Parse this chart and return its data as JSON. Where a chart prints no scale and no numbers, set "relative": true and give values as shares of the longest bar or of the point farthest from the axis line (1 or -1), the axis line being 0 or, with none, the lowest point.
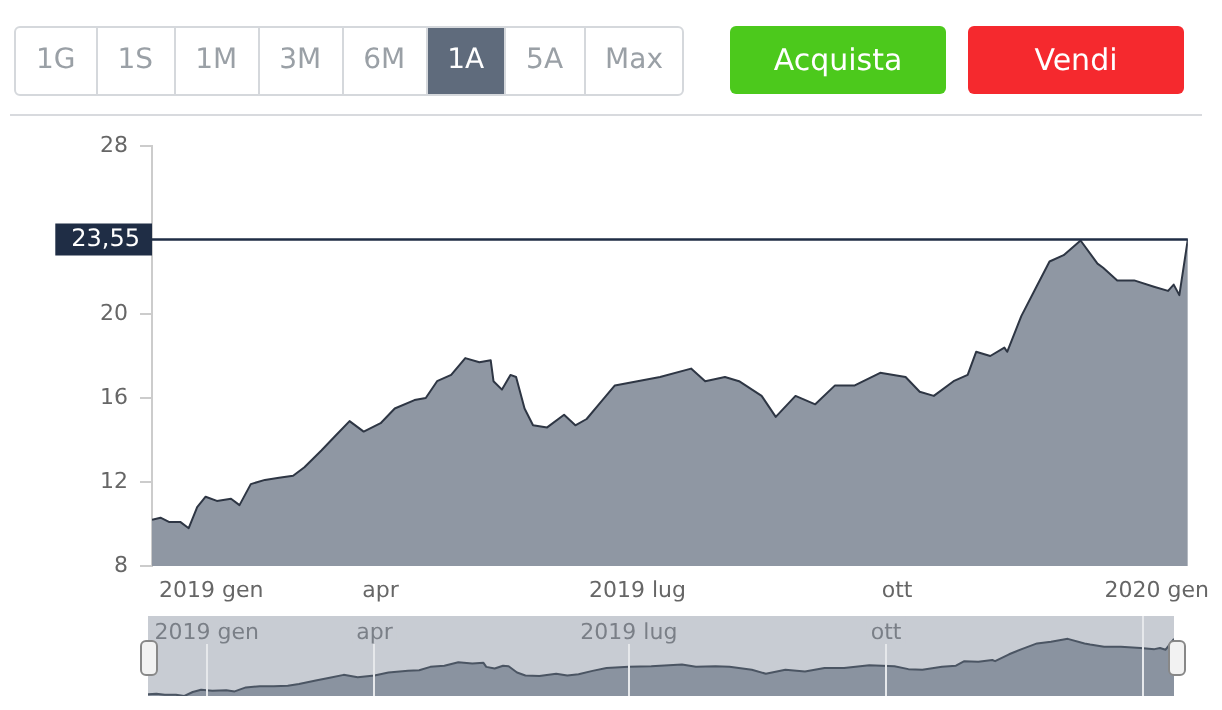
{
  "chart_data": [
    {
      "type": "area",
      "color": "#8f97a3",
      "x": [
        "2019-01-10",
        "2019-01-13",
        "2019-01-16",
        "2019-01-20",
        "2019-01-23",
        "2019-01-26",
        "2019-01-29",
        "2019-02-02",
        "2019-02-07",
        "2019-02-10",
        "2019-02-14",
        "2019-02-19",
        "2019-02-24",
        "2019-03-01",
        "2019-03-05",
        "2019-03-11",
        "2019-03-16",
        "2019-03-21",
        "2019-03-26",
        "2019-04-01",
        "2019-04-06",
        "2019-04-13",
        "2019-04-17",
        "2019-04-21",
        "2019-04-26",
        "2019-05-01",
        "2019-05-06",
        "2019-05-10",
        "2019-05-11",
        "2019-05-14",
        "2019-05-17",
        "2019-05-19",
        "2019-05-22",
        "2019-05-25",
        "2019-05-30",
        "2019-06-05",
        "2019-06-09",
        "2019-06-13",
        "2019-06-18",
        "2019-06-23",
        "2019-07-01",
        "2019-07-09",
        "2019-07-20",
        "2019-07-25",
        "2019-08-01",
        "2019-08-06",
        "2019-08-14",
        "2019-08-19",
        "2019-08-26",
        "2019-09-02",
        "2019-09-09",
        "2019-09-16",
        "2019-09-25",
        "2019-10-04",
        "2019-10-09",
        "2019-10-14",
        "2019-10-21",
        "2019-10-26",
        "2019-10-29",
        "2019-11-03",
        "2019-11-08",
        "2019-11-09",
        "2019-11-14",
        "2019-11-19",
        "2019-11-24",
        "2019-11-29",
        "2019-12-05",
        "2019-12-11",
        "2019-12-13",
        "2019-12-18",
        "2019-12-24",
        "2019-12-31",
        "2020-01-05",
        "2020-01-07",
        "2020-01-09",
        "2020-01-12"
      ],
      "values": [
        10.2,
        10.3,
        10.1,
        10.1,
        9.8,
        10.8,
        11.3,
        11.1,
        11.2,
        10.9,
        11.9,
        12.1,
        12.2,
        12.3,
        12.7,
        13.5,
        14.2,
        14.9,
        14.4,
        14.8,
        15.5,
        15.9,
        16.0,
        16.8,
        17.1,
        17.9,
        17.7,
        17.8,
        16.8,
        16.4,
        17.1,
        17.0,
        15.5,
        14.7,
        14.6,
        15.2,
        14.7,
        15.0,
        15.8,
        16.6,
        16.8,
        17.0,
        17.4,
        16.8,
        17.0,
        16.8,
        16.1,
        15.1,
        16.1,
        15.7,
        16.6,
        16.6,
        17.2,
        17.0,
        16.3,
        16.1,
        16.8,
        17.1,
        18.2,
        18.0,
        18.4,
        18.2,
        19.9,
        21.2,
        22.5,
        22.8,
        23.5,
        22.4,
        22.2,
        21.6,
        21.6,
        21.3,
        21.1,
        21.4,
        20.9,
        23.55
      ],
      "xlim": [
        "2019-01-10",
        "2020-01-12"
      ],
      "xticks": [
        {
          "value": "2019-01-31",
          "label": "2019 gen"
        },
        {
          "value": "2019-04-01",
          "label": "apr"
        },
        {
          "value": "2019-07-01",
          "label": "2019 lug"
        },
        {
          "value": "2019-10-01",
          "label": "ott"
        },
        {
          "value": "2020-01-01",
          "label": "2020 gen"
        }
      ],
      "ylim": [
        8,
        28
      ],
      "yticks": [
        8,
        12,
        16,
        20,
        28
      ],
      "ref_lines": [
        {
          "axis": "y",
          "value": 23.55,
          "label": "23,55",
          "color": "#1f2d45"
        }
      ],
      "annotations": [
        "1G",
        "1S",
        "1M",
        "3M",
        "6M",
        "1A",
        "5A",
        "Max",
        "Acquista",
        "Vendi"
      ],
      "grid": false,
      "legend": false
    },
    {
      "type": "area",
      "color": "#8a93a0",
      "relative": true,
      "x": [
        "2019-01-10",
        "2019-01-13",
        "2019-01-16",
        "2019-01-20",
        "2019-01-23",
        "2019-01-26",
        "2019-01-29",
        "2019-02-02",
        "2019-02-07",
        "2019-02-10",
        "2019-02-14",
        "2019-02-19",
        "2019-02-24",
        "2019-03-01",
        "2019-03-05",
        "2019-03-11",
        "2019-03-16",
        "2019-03-21",
        "2019-03-26",
        "2019-04-01",
        "2019-04-06",
        "2019-04-13",
        "2019-04-17",
        "2019-04-21",
        "2019-04-26",
        "2019-05-01",
        "2019-05-06",
        "2019-05-10",
        "2019-05-11",
        "2019-05-14",
        "2019-05-17",
        "2019-05-19",
        "2019-05-22",
        "2019-05-25",
        "2019-05-30",
        "2019-06-05",
        "2019-06-09",
        "2019-06-13",
        "2019-06-18",
        "2019-06-23",
        "2019-07-01",
        "2019-07-09",
        "2019-07-20",
        "2019-07-25",
        "2019-08-01",
        "2019-08-06",
        "2019-08-14",
        "2019-08-19",
        "2019-08-26",
        "2019-09-02",
        "2019-09-09",
        "2019-09-16",
        "2019-09-25",
        "2019-10-04",
        "2019-10-09",
        "2019-10-14",
        "2019-10-21",
        "2019-10-26",
        "2019-10-29",
        "2019-11-03",
        "2019-11-08",
        "2019-11-09",
        "2019-11-14",
        "2019-11-19",
        "2019-11-24",
        "2019-11-29",
        "2019-12-05",
        "2019-12-11",
        "2019-12-13",
        "2019-12-18",
        "2019-12-24",
        "2019-12-31",
        "2020-01-05",
        "2020-01-07",
        "2020-01-09",
        "2020-01-12"
      ],
      "values": [
        0.03,
        0.04,
        0.02,
        0.02,
        0,
        0.07,
        0.11,
        0.09,
        0.1,
        0.08,
        0.15,
        0.17,
        0.17,
        0.18,
        0.21,
        0.27,
        0.32,
        0.37,
        0.33,
        0.36,
        0.41,
        0.44,
        0.45,
        0.51,
        0.53,
        0.59,
        0.57,
        0.58,
        0.51,
        0.48,
        0.53,
        0.52,
        0.41,
        0.36,
        0.35,
        0.39,
        0.36,
        0.38,
        0.44,
        0.49,
        0.51,
        0.52,
        0.55,
        0.51,
        0.52,
        0.51,
        0.46,
        0.39,
        0.46,
        0.43,
        0.49,
        0.49,
        0.54,
        0.52,
        0.47,
        0.46,
        0.51,
        0.53,
        0.61,
        0.6,
        0.63,
        0.61,
        0.73,
        0.83,
        0.92,
        0.95,
        1,
        0.92,
        0.9,
        0.86,
        0.86,
        0.84,
        0.82,
        0.84,
        0.81,
        1
      ],
      "xlim": [
        "2019-01-10",
        "2020-01-12"
      ],
      "xticks": [
        {
          "value": "2019-01-31",
          "label": "2019 gen"
        },
        {
          "value": "2019-04-01",
          "label": "apr"
        },
        {
          "value": "2019-07-01",
          "label": "2019 lug"
        },
        {
          "value": "2019-10-01",
          "label": "ott"
        },
        {
          "value": "2020-01-01",
          "label": null
        }
      ],
      "grid": "x",
      "legend": false
    }
  ]
}
